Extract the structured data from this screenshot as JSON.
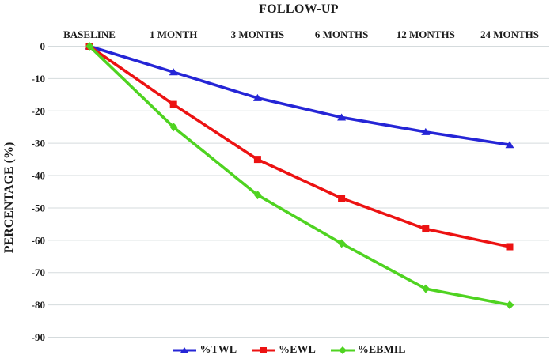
{
  "chart_data": {
    "type": "line",
    "title": "FOLLOW-UP",
    "ylabel": "PERCENTAGE (%)",
    "xlabel": "",
    "categories": [
      "BASELINE",
      "1 MONTH",
      "3 MONTHS",
      "6 MONTHS",
      "12 MONTHS",
      "24 MONTHS"
    ],
    "series": [
      {
        "name": "%TWL",
        "color": "#2525D6",
        "marker": "triangle",
        "values": [
          0,
          -8,
          -16,
          -22,
          -26.5,
          -30.5
        ]
      },
      {
        "name": "%EWL",
        "color": "#EC1212",
        "marker": "square",
        "values": [
          0,
          -18,
          -35,
          -47,
          -56.5,
          -62
        ]
      },
      {
        "name": "%EBMIL",
        "color": "#4FD321",
        "marker": "diamond",
        "values": [
          0,
          -25,
          -46,
          -61,
          -75,
          -80
        ]
      }
    ],
    "ylim": [
      -90,
      0
    ],
    "ytick_step": 10,
    "yticks": [
      0,
      -10,
      -20,
      -30,
      -40,
      -50,
      -60,
      -70,
      -80,
      -90
    ],
    "grid": "horizontal",
    "gridline_color": "#D5DBDD",
    "text_color": "#1b1b1b",
    "legend_position": "bottom"
  }
}
